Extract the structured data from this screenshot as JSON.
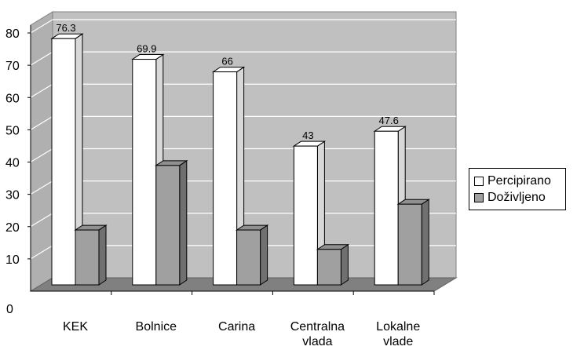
{
  "chart_data": {
    "type": "bar",
    "categories": [
      [
        "KEK"
      ],
      [
        "Bolnice"
      ],
      [
        "Carina"
      ],
      [
        "Centralna",
        "vlada"
      ],
      [
        "Lokalne",
        "vlade"
      ]
    ],
    "series": [
      {
        "name": "Percipirano",
        "values": [
          76.3,
          69.9,
          66,
          43,
          47.6
        ],
        "color": "#ffffff",
        "labels": [
          "76.3",
          "69.9",
          "66",
          "43",
          "47.6"
        ]
      },
      {
        "name": "Doživljeno",
        "values": [
          17,
          37,
          17,
          11,
          25
        ],
        "color": "#a0a0a0"
      }
    ],
    "yticks": [
      "0",
      "10",
      "20",
      "30",
      "40",
      "50",
      "60",
      "70",
      "80"
    ],
    "ylim": [
      0,
      80
    ],
    "grid": true,
    "legend_position": "right"
  }
}
